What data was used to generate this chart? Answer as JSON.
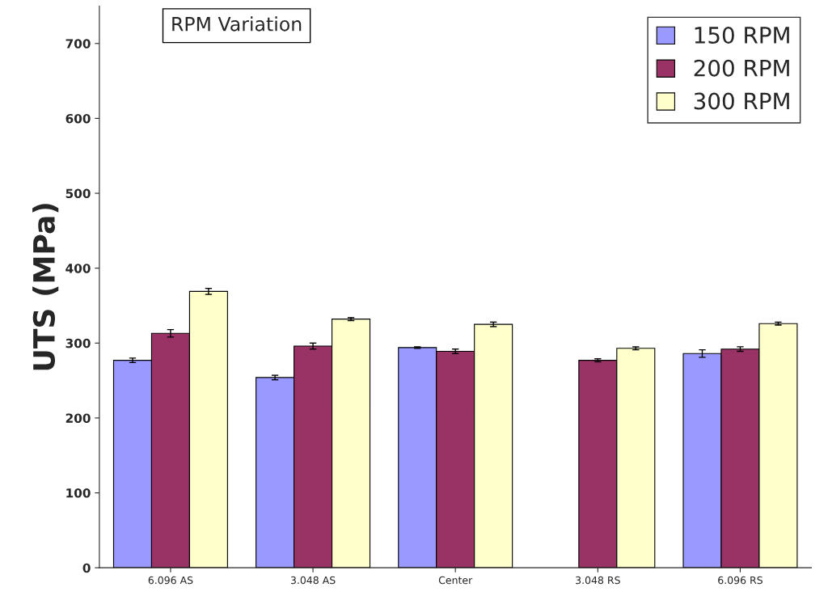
{
  "chart_data": {
    "type": "bar",
    "ylabel": "UTS (MPa)",
    "annotations": [
      "RPM Variation"
    ],
    "categories": [
      "6.096 AS",
      "3.048 AS",
      "Center",
      "3.048 RS",
      "6.096 RS"
    ],
    "series": [
      {
        "name": "150 RPM",
        "color": "#9999ff",
        "values": [
          277,
          254,
          294,
          null,
          286
        ],
        "errors": [
          3,
          3,
          1,
          null,
          5
        ]
      },
      {
        "name": "200 RPM",
        "color": "#993366",
        "values": [
          313,
          296,
          289,
          277,
          292
        ],
        "errors": [
          5,
          4,
          3,
          2,
          3
        ]
      },
      {
        "name": "300 RPM",
        "color": "#ffffcc",
        "values": [
          369,
          332,
          325,
          293,
          326
        ],
        "errors": [
          4,
          2,
          3,
          2,
          2
        ]
      }
    ],
    "ylim": [
      0,
      750
    ],
    "yticks": [
      0,
      100,
      200,
      300,
      400,
      500,
      600,
      700
    ],
    "grid": false,
    "legend": "top right"
  }
}
